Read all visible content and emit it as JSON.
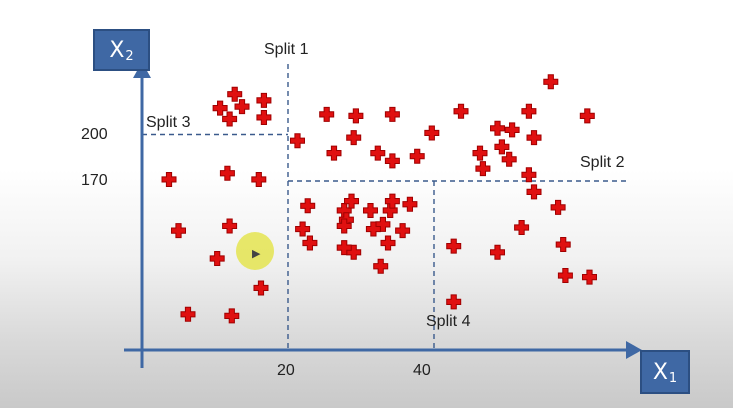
{
  "axes": {
    "y_label": "X",
    "y_label_sub": "2",
    "x_label": "X",
    "x_label_sub": "1"
  },
  "ticks": {
    "x": [
      "20",
      "40"
    ],
    "y": [
      "200",
      "170"
    ]
  },
  "splits": {
    "split1": "Split 1",
    "split2": "Split 2",
    "split3": "Split 3",
    "split4": "Split 4"
  },
  "colors": {
    "axis": "#3f68a4",
    "split_line": "#3a5a8c",
    "marker": "#e01010",
    "marker_edge": "#a00000"
  },
  "marker_icon": "red-plus-icon",
  "chart_data": {
    "type": "scatter",
    "x_ticks": [
      20,
      40
    ],
    "y_ticks": [
      170,
      200
    ],
    "splits": [
      {
        "name": "Split 1",
        "axis": "x",
        "value": 20
      },
      {
        "name": "Split 2",
        "axis": "y",
        "value": 170,
        "x_from": 20
      },
      {
        "name": "Split 3",
        "axis": "y",
        "value": 200,
        "x_to": 20
      },
      {
        "name": "Split 4",
        "axis": "x",
        "value": 40,
        "y_to": 170
      }
    ],
    "points": [
      [
        12.7,
        226
      ],
      [
        16.7,
        222
      ],
      [
        10.7,
        217
      ],
      [
        13.7,
        218
      ],
      [
        12.0,
        210
      ],
      [
        16.7,
        211
      ],
      [
        3.7,
        171
      ],
      [
        11.7,
        175
      ],
      [
        16.0,
        171
      ],
      [
        5.0,
        138
      ],
      [
        12.0,
        141
      ],
      [
        10.3,
        120
      ],
      [
        16.3,
        101
      ],
      [
        6.3,
        84
      ],
      [
        12.3,
        83
      ],
      [
        21.3,
        196
      ],
      [
        25.3,
        213
      ],
      [
        29.3,
        212
      ],
      [
        34.3,
        213
      ],
      [
        26.3,
        188
      ],
      [
        29.0,
        198
      ],
      [
        32.3,
        188
      ],
      [
        34.3,
        183
      ],
      [
        37.7,
        186
      ],
      [
        39.7,
        201
      ],
      [
        43.7,
        215
      ],
      [
        46.3,
        188
      ],
      [
        48.7,
        204
      ],
      [
        49.3,
        192
      ],
      [
        46.7,
        178
      ],
      [
        53.0,
        215
      ],
      [
        53.7,
        198
      ],
      [
        56.0,
        234
      ],
      [
        50.7,
        203
      ],
      [
        50.3,
        184
      ],
      [
        61.0,
        212
      ],
      [
        22.7,
        154
      ],
      [
        27.7,
        151
      ],
      [
        28.7,
        157
      ],
      [
        31.3,
        151
      ],
      [
        34.0,
        151
      ],
      [
        36.7,
        155
      ],
      [
        28.0,
        145
      ],
      [
        33.0,
        142
      ],
      [
        34.3,
        157
      ],
      [
        22.0,
        139
      ],
      [
        23.0,
        130
      ],
      [
        27.7,
        141
      ],
      [
        31.7,
        139
      ],
      [
        35.7,
        138
      ],
      [
        29.0,
        124
      ],
      [
        33.7,
        130
      ],
      [
        27.7,
        127
      ],
      [
        32.7,
        115
      ],
      [
        42.7,
        128
      ],
      [
        48.7,
        124
      ],
      [
        52.0,
        140
      ],
      [
        53.7,
        163
      ],
      [
        57.0,
        153
      ],
      [
        53.0,
        174
      ],
      [
        57.7,
        129
      ],
      [
        61.3,
        108
      ],
      [
        58.0,
        109
      ],
      [
        42.7,
        92
      ]
    ]
  }
}
